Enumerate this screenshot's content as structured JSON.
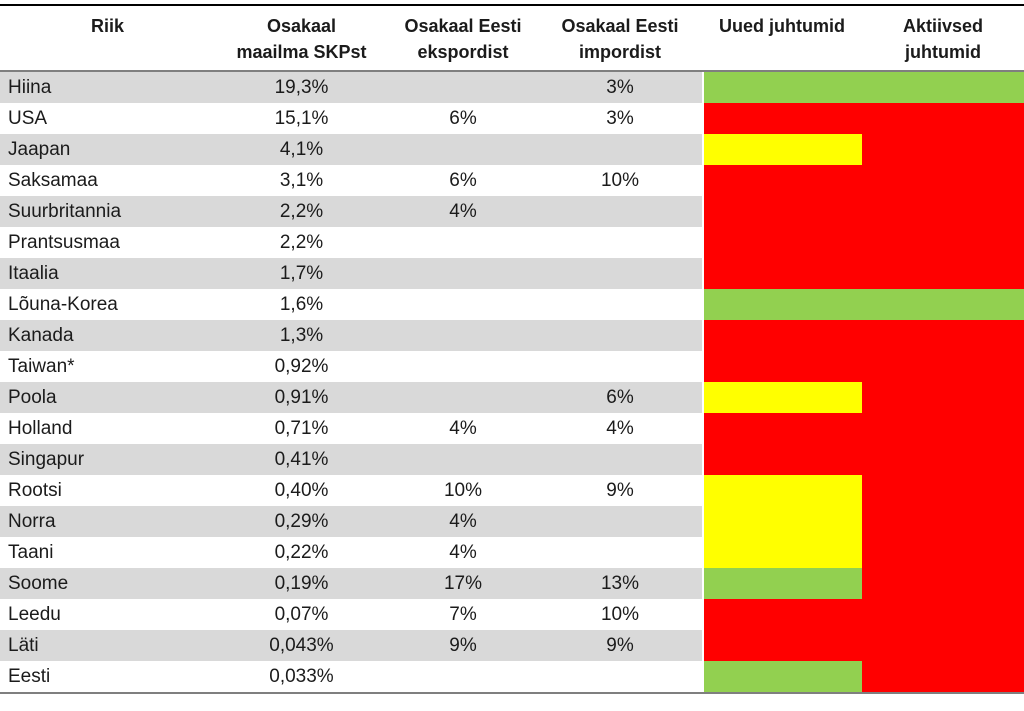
{
  "chart_data": {
    "type": "table",
    "columns": [
      "Riik",
      "Osakaal maailma SKPst",
      "Osakaal Eesti ekspordist",
      "Osakaal Eesti impordist",
      "Uued juhtumid",
      "Aktiivsed juhtumid"
    ],
    "rows": [
      {
        "country": "Hiina",
        "gdp_share": "19,3%",
        "export_share": "",
        "import_share": "3%",
        "new_cases_color": "green",
        "active_cases_color": "green"
      },
      {
        "country": "USA",
        "gdp_share": "15,1%",
        "export_share": "6%",
        "import_share": "3%",
        "new_cases_color": "red",
        "active_cases_color": "red"
      },
      {
        "country": "Jaapan",
        "gdp_share": "4,1%",
        "export_share": "",
        "import_share": "",
        "new_cases_color": "yellow",
        "active_cases_color": "red"
      },
      {
        "country": "Saksamaa",
        "gdp_share": "3,1%",
        "export_share": "6%",
        "import_share": "10%",
        "new_cases_color": "red",
        "active_cases_color": "red"
      },
      {
        "country": "Suurbritannia",
        "gdp_share": "2,2%",
        "export_share": "4%",
        "import_share": "",
        "new_cases_color": "red",
        "active_cases_color": "red"
      },
      {
        "country": "Prantsusmaa",
        "gdp_share": "2,2%",
        "export_share": "",
        "import_share": "",
        "new_cases_color": "red",
        "active_cases_color": "red"
      },
      {
        "country": "Itaalia",
        "gdp_share": "1,7%",
        "export_share": "",
        "import_share": "",
        "new_cases_color": "red",
        "active_cases_color": "red"
      },
      {
        "country": "Lõuna-Korea",
        "gdp_share": "1,6%",
        "export_share": "",
        "import_share": "",
        "new_cases_color": "green",
        "active_cases_color": "green"
      },
      {
        "country": "Kanada",
        "gdp_share": "1,3%",
        "export_share": "",
        "import_share": "",
        "new_cases_color": "red",
        "active_cases_color": "red"
      },
      {
        "country": "Taiwan*",
        "gdp_share": "0,92%",
        "export_share": "",
        "import_share": "",
        "new_cases_color": "red",
        "active_cases_color": "red"
      },
      {
        "country": "Poola",
        "gdp_share": "0,91%",
        "export_share": "",
        "import_share": "6%",
        "new_cases_color": "yellow",
        "active_cases_color": "red"
      },
      {
        "country": "Holland",
        "gdp_share": "0,71%",
        "export_share": "4%",
        "import_share": "4%",
        "new_cases_color": "red",
        "active_cases_color": "red"
      },
      {
        "country": "Singapur",
        "gdp_share": "0,41%",
        "export_share": "",
        "import_share": "",
        "new_cases_color": "red",
        "active_cases_color": "red"
      },
      {
        "country": "Rootsi",
        "gdp_share": "0,40%",
        "export_share": "10%",
        "import_share": "9%",
        "new_cases_color": "yellow",
        "active_cases_color": "red"
      },
      {
        "country": "Norra",
        "gdp_share": "0,29%",
        "export_share": "4%",
        "import_share": "",
        "new_cases_color": "yellow",
        "active_cases_color": "red"
      },
      {
        "country": "Taani",
        "gdp_share": "0,22%",
        "export_share": "4%",
        "import_share": "",
        "new_cases_color": "yellow",
        "active_cases_color": "red"
      },
      {
        "country": "Soome",
        "gdp_share": "0,19%",
        "export_share": "17%",
        "import_share": "13%",
        "new_cases_color": "green",
        "active_cases_color": "red"
      },
      {
        "country": "Leedu",
        "gdp_share": "0,07%",
        "export_share": "7%",
        "import_share": "10%",
        "new_cases_color": "red",
        "active_cases_color": "red"
      },
      {
        "country": "Läti",
        "gdp_share": "0,043%",
        "export_share": "9%",
        "import_share": "9%",
        "new_cases_color": "red",
        "active_cases_color": "red"
      },
      {
        "country": "Eesti",
        "gdp_share": "0,033%",
        "export_share": "",
        "import_share": "",
        "new_cases_color": "green",
        "active_cases_color": "red"
      }
    ],
    "color_key": {
      "green": "#92D050",
      "yellow": "#FFFF00",
      "red": "#FF0000"
    },
    "stripe_color": "#D9D9D9",
    "layout_hints": {
      "legend_position": "none",
      "grid": "off",
      "striped_rows": true
    }
  }
}
